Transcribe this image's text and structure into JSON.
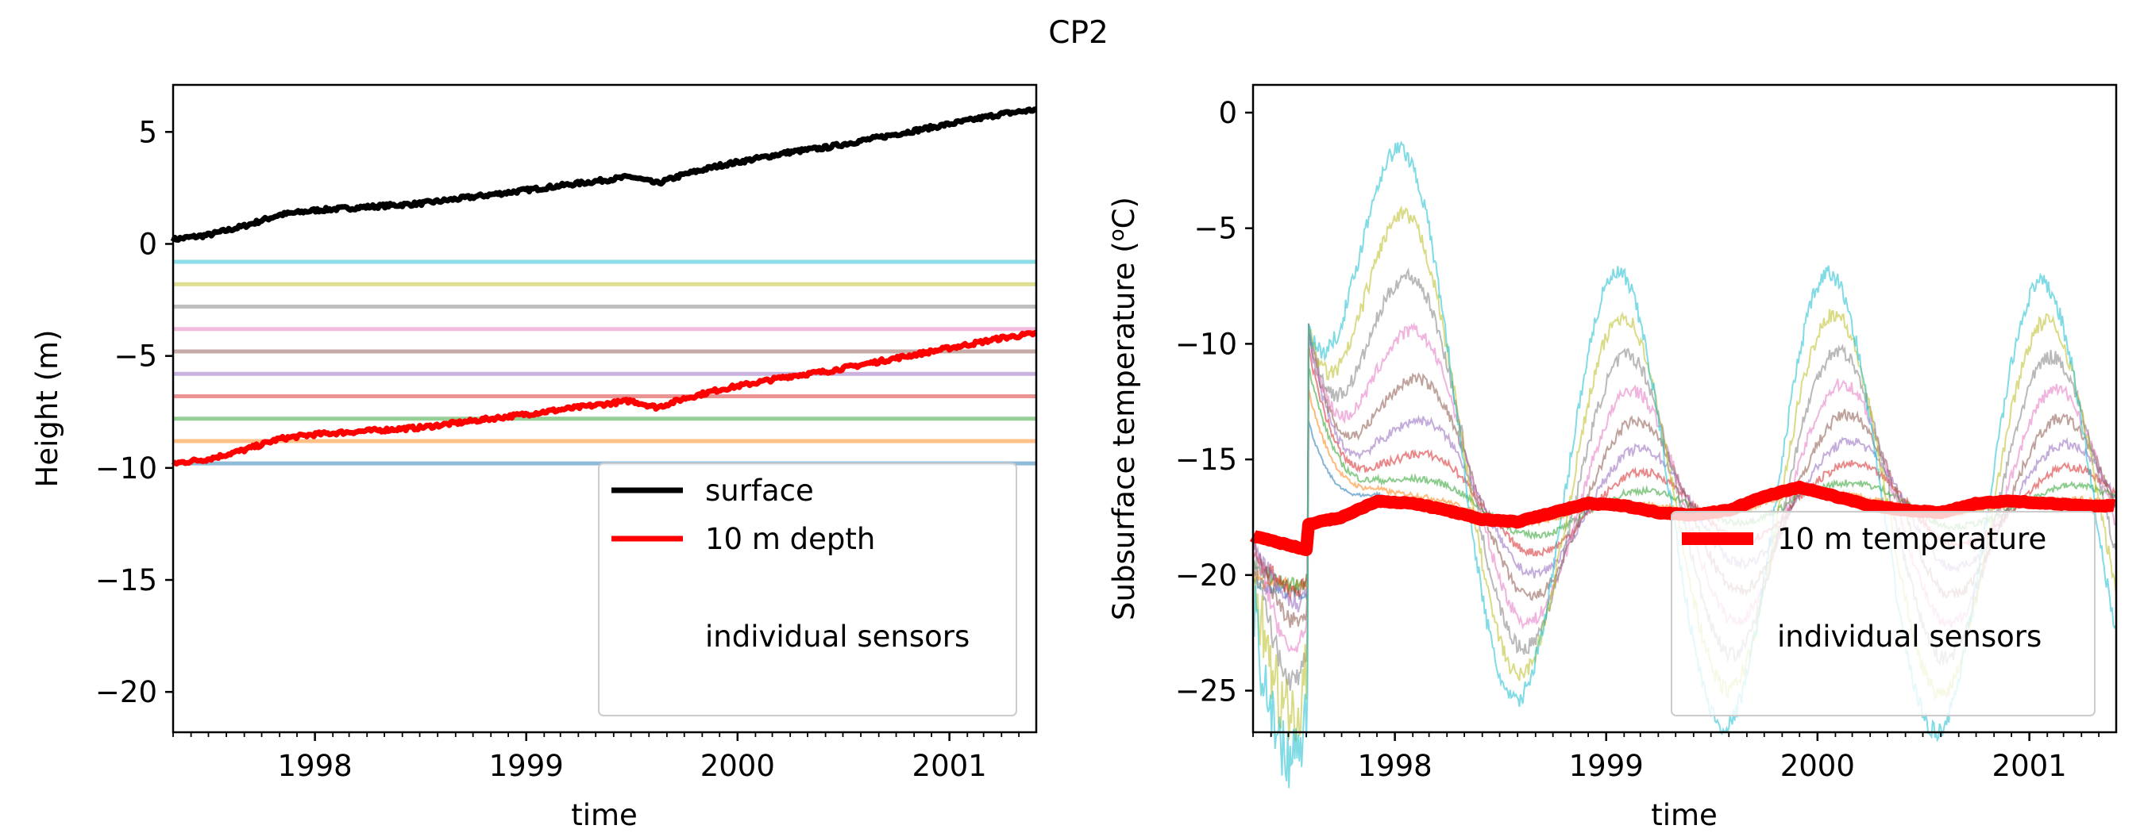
{
  "figure": {
    "suptitle": "CP2"
  },
  "chart_data": [
    {
      "type": "line",
      "title": "",
      "xlabel": "time",
      "ylabel": "Height (m)",
      "xlim": [
        "1997-05-01",
        "2001-05-31"
      ],
      "ylim": [
        -21.8,
        7.1
      ],
      "x_ticks": [
        "1998",
        "1999",
        "2000",
        "2001"
      ],
      "y_ticks": [
        5,
        0,
        -5,
        -10,
        -15,
        -20
      ],
      "y_tick_labels": [
        "5",
        "0",
        "−5",
        "−10",
        "−15",
        "−20"
      ],
      "grid": false,
      "legend": {
        "placement": "lower-right",
        "entries": [
          {
            "label": "surface",
            "color": "#000000"
          },
          {
            "label": "10 m depth",
            "color": "#ff0000"
          },
          {
            "label": "individual sensors",
            "color": ""
          }
        ]
      },
      "series": [
        {
          "name": "surface",
          "color": "#000000",
          "x": [
            "1997-05-01",
            "1997-07-01",
            "1997-09-01",
            "1997-11-01",
            "1998-01-01",
            "1998-03-01",
            "1998-05-01",
            "1998-07-01",
            "1998-09-01",
            "1998-11-01",
            "1999-01-01",
            "1999-03-01",
            "1999-05-01",
            "1999-07-01",
            "1999-08-15",
            "1999-10-01",
            "1999-12-01",
            "2000-02-01",
            "2000-04-01",
            "2000-06-01",
            "2000-08-01",
            "2000-10-01",
            "2000-12-01",
            "2001-02-01",
            "2001-04-01",
            "2001-05-31"
          ],
          "y": [
            0.2,
            0.4,
            0.8,
            1.3,
            1.5,
            1.6,
            1.7,
            1.8,
            2.0,
            2.2,
            2.4,
            2.6,
            2.8,
            3.0,
            2.7,
            3.1,
            3.5,
            3.8,
            4.1,
            4.3,
            4.6,
            4.9,
            5.2,
            5.5,
            5.8,
            6.0
          ]
        },
        {
          "name": "10 m depth",
          "color": "#ff0000",
          "x": [
            "1997-05-01",
            "1997-07-01",
            "1997-09-01",
            "1997-11-01",
            "1998-01-01",
            "1998-03-01",
            "1998-05-01",
            "1998-07-01",
            "1998-09-01",
            "1998-11-01",
            "1999-01-01",
            "1999-03-01",
            "1999-05-01",
            "1999-07-01",
            "1999-08-15",
            "1999-10-01",
            "1999-12-01",
            "2000-02-01",
            "2000-04-01",
            "2000-06-01",
            "2000-08-01",
            "2000-10-01",
            "2000-12-01",
            "2001-02-01",
            "2001-04-01",
            "2001-05-31"
          ],
          "y": [
            -9.8,
            -9.6,
            -9.2,
            -8.7,
            -8.5,
            -8.4,
            -8.3,
            -8.2,
            -8.0,
            -7.8,
            -7.6,
            -7.4,
            -7.2,
            -7.0,
            -7.3,
            -6.9,
            -6.5,
            -6.2,
            -5.9,
            -5.7,
            -5.4,
            -5.1,
            -4.8,
            -4.5,
            -4.2,
            -4.0
          ]
        }
      ],
      "sensors": {
        "color_cycle": [
          "#1f77b4",
          "#ff7f0e",
          "#2ca02c",
          "#d62728",
          "#9467bd",
          "#8c564b",
          "#e377c2",
          "#7f7f7f",
          "#bcbd22",
          "#17becf"
        ],
        "heights": [
          -9.8,
          -8.8,
          -7.8,
          -6.8,
          -5.8,
          -4.8,
          -3.8,
          -2.8,
          -1.8,
          -0.8
        ]
      }
    },
    {
      "type": "line",
      "title": "",
      "xlabel": "time",
      "ylabel": "Subsurface temperature (°C)",
      "ylabel_parts": [
        "Subsurface temperature (",
        "o",
        "C)"
      ],
      "xlim": [
        "1997-05-01",
        "2001-05-31"
      ],
      "ylim": [
        -26.8,
        1.2
      ],
      "x_ticks": [
        "1998",
        "1999",
        "2000",
        "2001"
      ],
      "y_ticks": [
        0,
        -5,
        -10,
        -15,
        -20,
        -25
      ],
      "y_tick_labels": [
        "0",
        "−5",
        "−10",
        "−15",
        "−20",
        "−25"
      ],
      "grid": false,
      "legend": {
        "placement": "lower-right",
        "entries": [
          {
            "label": "10 m temperature",
            "color": "#ff0000"
          },
          {
            "label": "individual sensors",
            "color": ""
          }
        ]
      },
      "series": [
        {
          "name": "10 m temperature",
          "color": "#ff0000",
          "x": [
            "1997-05-01",
            "1997-06-15",
            "1997-08-01",
            "1997-08-05",
            "1997-10-01",
            "1997-12-01",
            "1998-02-01",
            "1998-04-01",
            "1998-06-01",
            "1998-08-01",
            "1998-10-01",
            "1998-12-01",
            "1999-02-01",
            "1999-04-01",
            "1999-06-01",
            "1999-08-01",
            "1999-10-01",
            "1999-12-01",
            "2000-02-01",
            "2000-04-01",
            "2000-06-01",
            "2000-08-01",
            "2000-10-01",
            "2000-12-01",
            "2001-02-01",
            "2001-04-01",
            "2001-05-31"
          ],
          "y": [
            -18.3,
            -18.6,
            -18.9,
            -17.8,
            -17.5,
            -16.8,
            -16.9,
            -17.2,
            -17.6,
            -17.7,
            -17.3,
            -16.9,
            -17.0,
            -17.3,
            -17.4,
            -17.2,
            -16.6,
            -16.2,
            -16.6,
            -17.0,
            -17.2,
            -17.3,
            -16.9,
            -16.8,
            -16.9,
            -17.0,
            -17.0
          ]
        }
      ],
      "sensors": {
        "color_cycle": [
          "#1f77b4",
          "#ff7f0e",
          "#2ca02c",
          "#d62728",
          "#9467bd",
          "#8c564b",
          "#e377c2",
          "#7f7f7f",
          "#bcbd22",
          "#17becf"
        ],
        "count": 10
      }
    }
  ]
}
